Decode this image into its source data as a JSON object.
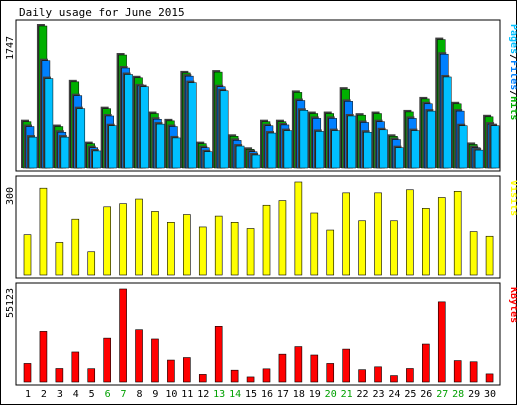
{
  "title": "Daily usage for June 2015",
  "colors": {
    "hits": "#00b000",
    "files": "#0080ff",
    "pages": "#00c0ff",
    "visits": "#ffff00",
    "kbytes": "#ff0000",
    "frame": "#000000",
    "panel_bg": "#ffffff",
    "weekend_label": "#00a000",
    "weekday_label": "#000000"
  },
  "chart_data": [
    {
      "type": "bar",
      "panel": "hits",
      "ylabel_parts": [
        {
          "text": "Pages",
          "color": "#00c0ff"
        },
        {
          "text": "/",
          "color": "#000000"
        },
        {
          "text": "Files",
          "color": "#0080ff"
        },
        {
          "text": "/",
          "color": "#000000"
        },
        {
          "text": "Hits",
          "color": "#00b000"
        }
      ],
      "ymax_label": "1747",
      "ylim": [
        0,
        1747
      ],
      "categories": [
        "1",
        "2",
        "3",
        "4",
        "5",
        "6",
        "7",
        "8",
        "9",
        "10",
        "11",
        "12",
        "13",
        "14",
        "15",
        "16",
        "17",
        "18",
        "19",
        "20",
        "21",
        "22",
        "23",
        "24",
        "25",
        "26",
        "27",
        "28",
        "29",
        "30"
      ],
      "weekend_days": [
        "6",
        "7",
        "13",
        "14",
        "20",
        "21",
        "27",
        "28"
      ],
      "series": [
        {
          "name": "Hits",
          "values": [
            570,
            1747,
            510,
            1060,
            300,
            730,
            1390,
            1110,
            670,
            580,
            1170,
            300,
            1180,
            390,
            230,
            570,
            570,
            930,
            670,
            670,
            970,
            650,
            670,
            390,
            690,
            850,
            1580,
            790,
            290,
            630
          ]
        },
        {
          "name": "Files",
          "values": [
            510,
            1320,
            440,
            890,
            250,
            640,
            1230,
            1010,
            600,
            510,
            1130,
            250,
            1000,
            340,
            200,
            520,
            530,
            830,
            610,
            610,
            820,
            560,
            570,
            350,
            610,
            790,
            1400,
            700,
            250,
            540
          ]
        },
        {
          "name": "Pages",
          "values": [
            380,
            1100,
            380,
            730,
            210,
            520,
            1150,
            1000,
            540,
            370,
            1050,
            200,
            950,
            270,
            160,
            430,
            460,
            710,
            450,
            460,
            640,
            440,
            470,
            250,
            460,
            700,
            1120,
            520,
            220,
            520
          ]
        }
      ]
    },
    {
      "type": "bar",
      "panel": "visits",
      "ylabel_parts": [
        {
          "text": "Visits",
          "color": "#ffff00"
        }
      ],
      "ymax_label": "300",
      "ylim": [
        0,
        300
      ],
      "categories": [
        "1",
        "2",
        "3",
        "4",
        "5",
        "6",
        "7",
        "8",
        "9",
        "10",
        "11",
        "12",
        "13",
        "14",
        "15",
        "16",
        "17",
        "18",
        "19",
        "20",
        "21",
        "22",
        "23",
        "24",
        "25",
        "26",
        "27",
        "28",
        "29",
        "30"
      ],
      "series": [
        {
          "name": "Visits",
          "values": [
            130,
            280,
            105,
            180,
            75,
            220,
            230,
            245,
            205,
            170,
            195,
            155,
            190,
            170,
            150,
            225,
            240,
            300,
            200,
            145,
            265,
            175,
            265,
            175,
            275,
            215,
            250,
            270,
            140,
            125
          ]
        }
      ]
    },
    {
      "type": "bar",
      "panel": "kbytes",
      "ylabel_parts": [
        {
          "text": "KBytes",
          "color": "#ff0000"
        }
      ],
      "ymax_label": "55123",
      "ylim": [
        0,
        55123
      ],
      "categories": [
        "1",
        "2",
        "3",
        "4",
        "5",
        "6",
        "7",
        "8",
        "9",
        "10",
        "11",
        "12",
        "13",
        "14",
        "15",
        "16",
        "17",
        "18",
        "19",
        "20",
        "21",
        "22",
        "23",
        "24",
        "25",
        "26",
        "27",
        "28",
        "29",
        "30"
      ],
      "series": [
        {
          "name": "KBytes",
          "values": [
            11000,
            30000,
            8000,
            17800,
            7900,
            26000,
            55123,
            31000,
            25500,
            13000,
            14500,
            4500,
            33000,
            7000,
            3000,
            7800,
            16500,
            21000,
            16000,
            11000,
            19500,
            7300,
            9000,
            3800,
            8000,
            22500,
            47500,
            12700,
            12000,
            4800
          ]
        }
      ]
    }
  ]
}
